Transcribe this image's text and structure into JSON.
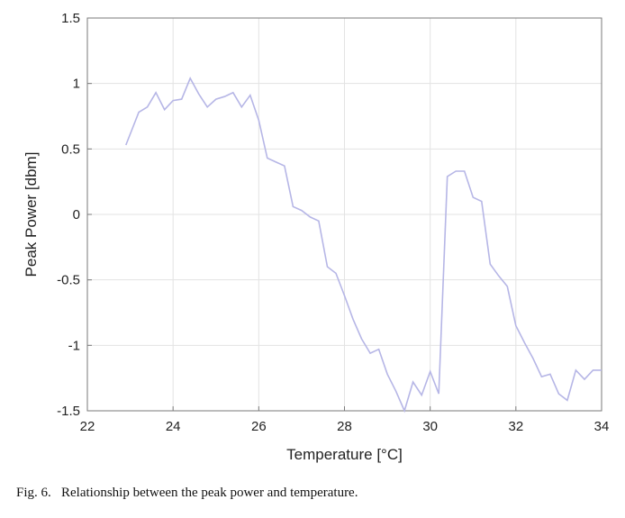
{
  "chart_data": {
    "type": "line",
    "xlabel": "Temperature [°C]",
    "ylabel": "Peak Power [dbm]",
    "xlim": [
      22,
      34
    ],
    "ylim": [
      -1.5,
      1.5
    ],
    "xticks": [
      22,
      24,
      26,
      28,
      30,
      32,
      34
    ],
    "yticks": [
      -1.5,
      -1,
      -0.5,
      0,
      0.5,
      1,
      1.5
    ],
    "ytick_labels": [
      "-1.5",
      "-1",
      "-0.5",
      "0",
      "0.5",
      "1",
      "1.5"
    ],
    "grid": true,
    "line_color": "#b6b6e6",
    "series": [
      {
        "x": [
          22.9,
          23.2,
          23.4,
          23.6,
          23.8,
          24.0,
          24.2,
          24.4,
          24.6,
          24.8,
          25.0,
          25.2,
          25.4,
          25.6,
          25.8,
          26.0,
          26.2,
          26.4,
          26.6,
          26.8,
          27.0,
          27.2,
          27.4,
          27.6,
          27.8,
          28.0,
          28.2,
          28.4,
          28.6,
          28.8,
          29.0,
          29.2,
          29.4,
          29.6,
          29.8,
          30.0,
          30.2,
          30.4,
          30.6,
          30.8,
          31.0,
          31.2,
          31.4,
          31.6,
          31.8,
          32.0,
          32.2,
          32.4,
          32.6,
          32.8,
          33.0,
          33.2,
          33.4,
          33.6,
          33.8,
          34.0
        ],
        "values": [
          0.53,
          0.78,
          0.82,
          0.93,
          0.8,
          0.87,
          0.88,
          1.04,
          0.92,
          0.82,
          0.88,
          0.9,
          0.93,
          0.82,
          0.91,
          0.72,
          0.43,
          0.4,
          0.37,
          0.06,
          0.03,
          -0.02,
          -0.05,
          -0.4,
          -0.45,
          -0.62,
          -0.8,
          -0.95,
          -1.06,
          -1.03,
          -1.22,
          -1.35,
          -1.53,
          -1.28,
          -1.38,
          -1.2,
          -1.37,
          0.29,
          0.33,
          0.33,
          0.13,
          0.1,
          -0.38,
          -0.47,
          -0.55,
          -0.85,
          -0.98,
          -1.1,
          -1.24,
          -1.22,
          -1.37,
          -1.42,
          -1.19,
          -1.26,
          -1.19,
          -1.19
        ]
      }
    ]
  },
  "caption": "Fig. 6.   Relationship between the peak power and temperature."
}
